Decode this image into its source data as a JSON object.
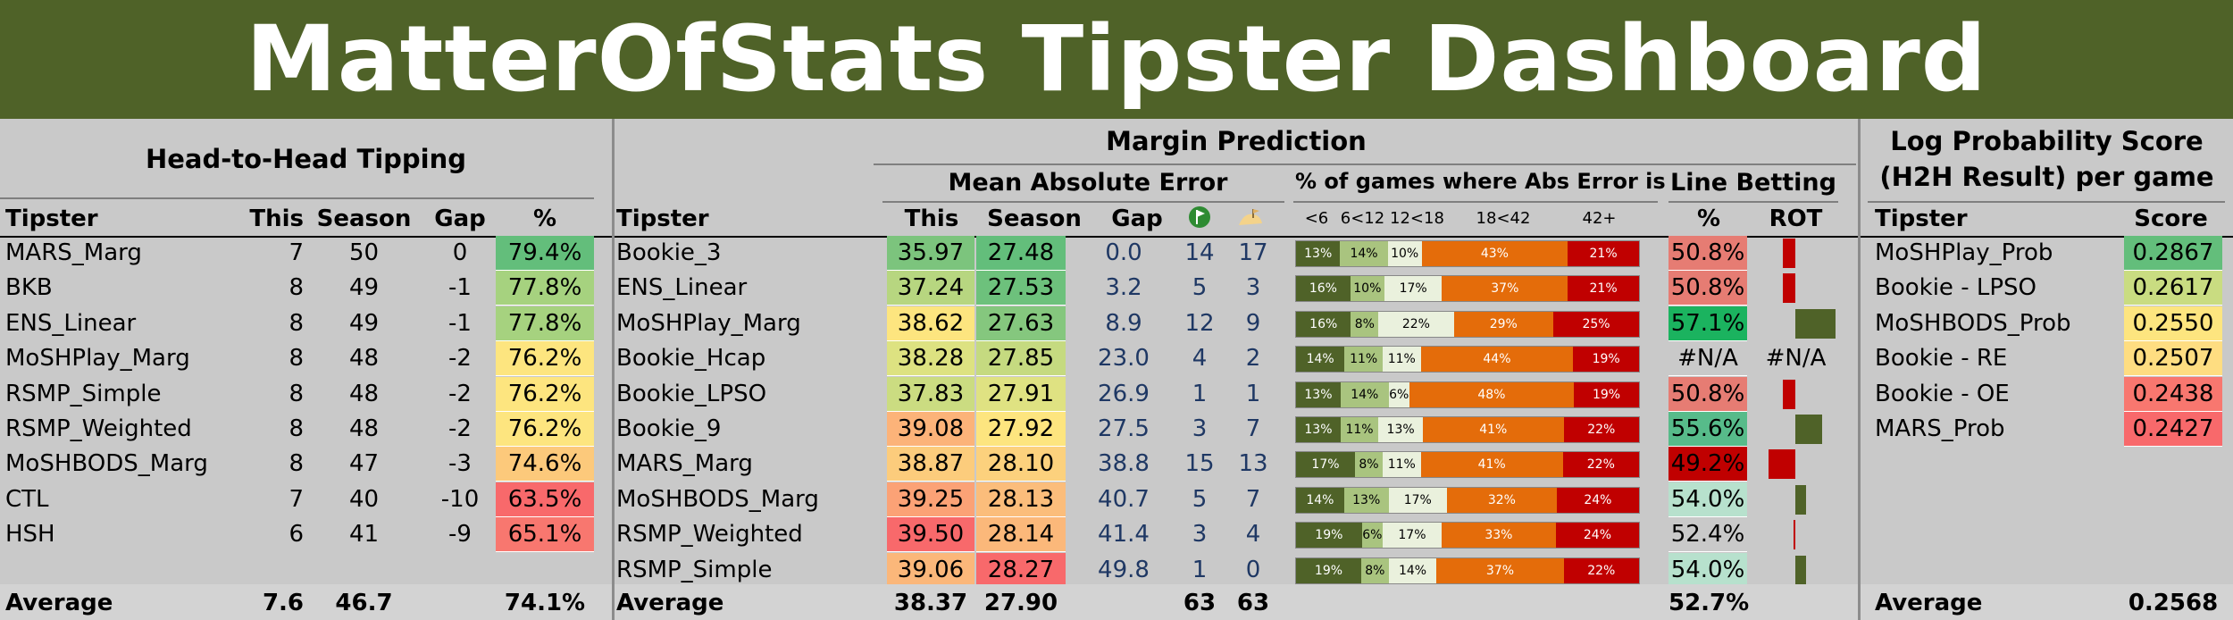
{
  "title": "MatterOfStats Tipster Dashboard",
  "colors": {
    "banner": "#4f6228",
    "panel": "#c9c9c9",
    "rot_bar": "#4f6228",
    "bucket_colors": [
      "#4f6228",
      "#a9c47f",
      "#eaf1dd",
      "#e46c0a",
      "#c00000"
    ]
  },
  "h2h": {
    "title": "Head-to-Head Tipping",
    "columns": [
      "Tipster",
      "This",
      "Season",
      "Gap",
      "%"
    ],
    "rows": [
      {
        "name": "MARS_Marg",
        "this": "7",
        "season": "50",
        "gap": "0",
        "pct": "79.4%",
        "color": "#63be7b"
      },
      {
        "name": "BKB",
        "this": "8",
        "season": "49",
        "gap": "-1",
        "pct": "77.8%",
        "color": "#a6d27f"
      },
      {
        "name": "ENS_Linear",
        "this": "8",
        "season": "49",
        "gap": "-1",
        "pct": "77.8%",
        "color": "#a6d27f"
      },
      {
        "name": "MoSHPlay_Marg",
        "this": "8",
        "season": "48",
        "gap": "-2",
        "pct": "76.2%",
        "color": "#fde57f"
      },
      {
        "name": "RSMP_Simple",
        "this": "8",
        "season": "48",
        "gap": "-2",
        "pct": "76.2%",
        "color": "#fde57f"
      },
      {
        "name": "RSMP_Weighted",
        "this": "8",
        "season": "48",
        "gap": "-2",
        "pct": "76.2%",
        "color": "#fde57f"
      },
      {
        "name": "MoSHBODS_Marg",
        "this": "8",
        "season": "47",
        "gap": "-3",
        "pct": "74.6%",
        "color": "#fcc97b"
      },
      {
        "name": "CTL",
        "this": "7",
        "season": "40",
        "gap": "-10",
        "pct": "63.5%",
        "color": "#f8696b"
      },
      {
        "name": "HSH",
        "this": "6",
        "season": "41",
        "gap": "-9",
        "pct": "65.1%",
        "color": "#f8776f"
      }
    ],
    "average": {
      "label": "Average",
      "this": "7.6",
      "season": "46.7",
      "pct": "74.1%"
    }
  },
  "margin": {
    "title": "Margin Prediction",
    "mae_title": "Mean Absolute Error",
    "buckets_title": "% of games where Abs Error is",
    "line_title": "Line Betting",
    "columns": {
      "tipster": "Tipster",
      "this": "This",
      "season": "Season",
      "gap": "Gap",
      "pct": "%",
      "rot": "ROT"
    },
    "icon_names": [
      "golf-flag-icon",
      "golf-bunker-icon"
    ],
    "bucket_labels": [
      "<6",
      "6<12",
      "12<18",
      "18<42",
      "42+"
    ],
    "rows": [
      {
        "name": "Bookie_3",
        "this": "35.97",
        "season": "27.48",
        "gap": "0.0",
        "c1": "14",
        "c2": "17",
        "this_color": "#7cc47d",
        "season_color": "#63be7b",
        "buckets": [
          13,
          14,
          10,
          43,
          21
        ],
        "pct": "50.8%",
        "pct_color": "#e67c73",
        "rot": -0.23
      },
      {
        "name": "ENS_Linear",
        "this": "37.24",
        "season": "27.53",
        "gap": "3.2",
        "c1": "5",
        "c2": "3",
        "this_color": "#b7d680",
        "season_color": "#6dc17c",
        "buckets": [
          16,
          10,
          17,
          37,
          21
        ],
        "pct": "50.8%",
        "pct_color": "#e67c73",
        "rot": -0.23
      },
      {
        "name": "MoSHPlay_Marg",
        "this": "38.62",
        "season": "27.63",
        "gap": "8.9",
        "c1": "12",
        "c2": "9",
        "this_color": "#fde57f",
        "season_color": "#85c77e",
        "buckets": [
          16,
          8,
          22,
          29,
          25
        ],
        "pct": "57.1%",
        "pct_color": "#1bb35f",
        "rot": 0.75
      },
      {
        "name": "Bookie_Hcap",
        "this": "38.28",
        "season": "27.85",
        "gap": "23.0",
        "c1": "4",
        "c2": "2",
        "this_color": "#dde281",
        "season_color": "#c5da80",
        "buckets": [
          14,
          11,
          11,
          44,
          19
        ],
        "pct": "#N/A",
        "pct_color": "",
        "rot": null,
        "rot_text": "#N/A"
      },
      {
        "name": "Bookie_LPSO",
        "this": "37.83",
        "season": "27.91",
        "gap": "26.9",
        "c1": "1",
        "c2": "1",
        "this_color": "#cbdc81",
        "season_color": "#dfe282",
        "buckets": [
          13,
          14,
          6,
          48,
          19
        ],
        "pct": "50.8%",
        "pct_color": "#e67c73",
        "rot": -0.23
      },
      {
        "name": "Bookie_9",
        "this": "39.08",
        "season": "27.92",
        "gap": "27.5",
        "c1": "3",
        "c2": "7",
        "this_color": "#fcb379",
        "season_color": "#fde57f",
        "buckets": [
          13,
          11,
          13,
          41,
          22
        ],
        "pct": "55.6%",
        "pct_color": "#57bb8a",
        "rot": 0.5
      },
      {
        "name": "MARS_Marg",
        "this": "38.87",
        "season": "28.10",
        "gap": "38.8",
        "c1": "15",
        "c2": "13",
        "this_color": "#fccc7c",
        "season_color": "#fcd17d",
        "buckets": [
          17,
          8,
          11,
          41,
          22
        ],
        "pct": "49.2%",
        "pct_color": "#c00000",
        "rot": -0.5
      },
      {
        "name": "MoSHBODS_Marg",
        "this": "39.25",
        "season": "28.13",
        "gap": "40.7",
        "c1": "5",
        "c2": "7",
        "this_color": "#fba276",
        "season_color": "#fbbd7b",
        "buckets": [
          14,
          13,
          17,
          32,
          24
        ],
        "pct": "54.0%",
        "pct_color": "#b7e1cd",
        "rot": 0.2
      },
      {
        "name": "RSMP_Weighted",
        "this": "39.50",
        "season": "28.14",
        "gap": "41.4",
        "c1": "3",
        "c2": "4",
        "this_color": "#f8696b",
        "season_color": "#fbb87a",
        "buckets": [
          19,
          6,
          17,
          33,
          24
        ],
        "pct": "52.4%",
        "pct_color": "",
        "rot": -0.04
      },
      {
        "name": "RSMP_Simple",
        "this": "39.06",
        "season": "28.27",
        "gap": "49.8",
        "c1": "1",
        "c2": "0",
        "this_color": "#fbb77a",
        "season_color": "#f8696b",
        "buckets": [
          19,
          8,
          14,
          37,
          22
        ],
        "pct": "54.0%",
        "pct_color": "#b7e1cd",
        "rot": 0.2
      }
    ],
    "average": {
      "label": "Average",
      "this": "38.37",
      "season": "27.90",
      "c1": "63",
      "c2": "63",
      "pct": "52.7%"
    }
  },
  "logprob": {
    "title_line1": "Log Probability Score",
    "title_line2": "(H2H Result) per game",
    "columns": [
      "Tipster",
      "Score"
    ],
    "rows": [
      {
        "name": "MoSHPlay_Prob",
        "score": "0.2867",
        "color": "#63be7b"
      },
      {
        "name": "Bookie - LPSO",
        "score": "0.2617",
        "color": "#c9dc81"
      },
      {
        "name": "MoSHBODS_Prob",
        "score": "0.2550",
        "color": "#fde57f"
      },
      {
        "name": "Bookie - RE",
        "score": "0.2507",
        "color": "#fedd81"
      },
      {
        "name": "Bookie - OE",
        "score": "0.2438",
        "color": "#f8776f"
      },
      {
        "name": "MARS_Prob",
        "score": "0.2427",
        "color": "#f8696b"
      }
    ],
    "average": {
      "label": "Average",
      "score": "0.2568"
    }
  }
}
